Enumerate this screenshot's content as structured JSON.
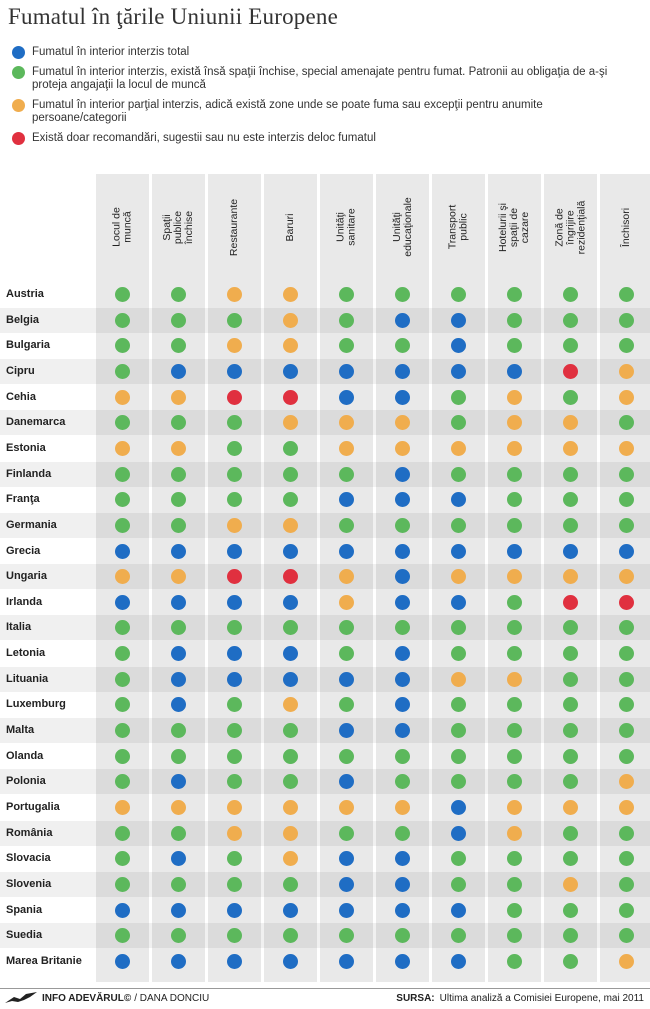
{
  "title": "Fumatul în ţările Uniunii Europene",
  "colors": {
    "blue": "#1f6dc4",
    "green": "#5cb85c",
    "orange": "#f0ad4e",
    "red": "#e0303f"
  },
  "legend": [
    {
      "color": "blue",
      "text": "Fumatul în interior interzis total"
    },
    {
      "color": "green",
      "text": "Fumatul în interior interzis, există însă spaţii închise, special amenajate pentru fumat. Patronii au obligaţia de a-şi proteja angajaţii la locul de muncă"
    },
    {
      "color": "orange",
      "text": "Fumatul în interior parţial interzis, adică există zone unde se poate fuma sau excepţii pentru anumite persoane/categorii"
    },
    {
      "color": "red",
      "text": "Există doar recomandări, sugestii sau nu este interzis deloc fumatul"
    }
  ],
  "chart_data": {
    "type": "table",
    "columns": [
      "Locul de muncă",
      "Spaţii publice închise",
      "Restaurante",
      "Baruri",
      "Unităţi sanitare",
      "Unităţi educaţionale",
      "Transport public",
      "Hotelurii şi spaţii de cazare",
      "Zonă de îngrijire rezidenţială",
      "Închisori"
    ],
    "rows": [
      {
        "country": "Austria",
        "values": [
          "green",
          "green",
          "orange",
          "orange",
          "green",
          "green",
          "green",
          "green",
          "green",
          "green"
        ]
      },
      {
        "country": "Belgia",
        "values": [
          "green",
          "green",
          "green",
          "orange",
          "green",
          "blue",
          "blue",
          "green",
          "green",
          "green"
        ]
      },
      {
        "country": "Bulgaria",
        "values": [
          "green",
          "green",
          "orange",
          "orange",
          "green",
          "green",
          "blue",
          "green",
          "green",
          "green"
        ]
      },
      {
        "country": "Cipru",
        "values": [
          "green",
          "blue",
          "blue",
          "blue",
          "blue",
          "blue",
          "blue",
          "blue",
          "red",
          "orange"
        ]
      },
      {
        "country": "Cehia",
        "values": [
          "orange",
          "orange",
          "red",
          "red",
          "blue",
          "blue",
          "green",
          "orange",
          "green",
          "orange"
        ]
      },
      {
        "country": "Danemarca",
        "values": [
          "green",
          "green",
          "green",
          "orange",
          "orange",
          "orange",
          "green",
          "orange",
          "orange",
          "green"
        ]
      },
      {
        "country": "Estonia",
        "values": [
          "orange",
          "orange",
          "green",
          "green",
          "orange",
          "orange",
          "orange",
          "orange",
          "orange",
          "orange"
        ]
      },
      {
        "country": "Finlanda",
        "values": [
          "green",
          "green",
          "green",
          "green",
          "green",
          "blue",
          "green",
          "green",
          "green",
          "green"
        ]
      },
      {
        "country": "Franţa",
        "values": [
          "green",
          "green",
          "green",
          "green",
          "blue",
          "blue",
          "blue",
          "green",
          "green",
          "green"
        ]
      },
      {
        "country": "Germania",
        "values": [
          "green",
          "green",
          "orange",
          "orange",
          "green",
          "green",
          "green",
          "green",
          "green",
          "green"
        ]
      },
      {
        "country": "Grecia",
        "values": [
          "blue",
          "blue",
          "blue",
          "blue",
          "blue",
          "blue",
          "blue",
          "blue",
          "blue",
          "blue"
        ]
      },
      {
        "country": "Ungaria",
        "values": [
          "orange",
          "orange",
          "red",
          "red",
          "orange",
          "blue",
          "orange",
          "orange",
          "orange",
          "orange"
        ]
      },
      {
        "country": "Irlanda",
        "values": [
          "blue",
          "blue",
          "blue",
          "blue",
          "orange",
          "blue",
          "blue",
          "green",
          "red",
          "red"
        ]
      },
      {
        "country": "Italia",
        "values": [
          "green",
          "green",
          "green",
          "green",
          "green",
          "green",
          "green",
          "green",
          "green",
          "green"
        ]
      },
      {
        "country": "Letonia",
        "values": [
          "green",
          "blue",
          "blue",
          "blue",
          "green",
          "blue",
          "green",
          "green",
          "green",
          "green"
        ]
      },
      {
        "country": "Lituania",
        "values": [
          "green",
          "blue",
          "blue",
          "blue",
          "blue",
          "blue",
          "orange",
          "orange",
          "green",
          "green"
        ]
      },
      {
        "country": "Luxemburg",
        "values": [
          "green",
          "blue",
          "green",
          "orange",
          "green",
          "blue",
          "green",
          "green",
          "green",
          "green"
        ]
      },
      {
        "country": "Malta",
        "values": [
          "green",
          "green",
          "green",
          "green",
          "blue",
          "blue",
          "green",
          "green",
          "green",
          "green"
        ]
      },
      {
        "country": "Olanda",
        "values": [
          "green",
          "green",
          "green",
          "green",
          "green",
          "green",
          "green",
          "green",
          "green",
          "green"
        ]
      },
      {
        "country": "Polonia",
        "values": [
          "green",
          "blue",
          "green",
          "green",
          "blue",
          "green",
          "green",
          "green",
          "green",
          "orange"
        ]
      },
      {
        "country": "Portugalia",
        "values": [
          "orange",
          "orange",
          "orange",
          "orange",
          "orange",
          "orange",
          "blue",
          "orange",
          "orange",
          "orange"
        ]
      },
      {
        "country": "România",
        "values": [
          "green",
          "green",
          "orange",
          "orange",
          "green",
          "green",
          "blue",
          "orange",
          "green",
          "green"
        ]
      },
      {
        "country": "Slovacia",
        "values": [
          "green",
          "blue",
          "green",
          "orange",
          "blue",
          "blue",
          "green",
          "green",
          "green",
          "green"
        ]
      },
      {
        "country": "Slovenia",
        "values": [
          "green",
          "green",
          "green",
          "green",
          "blue",
          "blue",
          "green",
          "green",
          "orange",
          "green"
        ]
      },
      {
        "country": "Spania",
        "values": [
          "blue",
          "blue",
          "blue",
          "blue",
          "blue",
          "blue",
          "blue",
          "green",
          "green",
          "green"
        ]
      },
      {
        "country": "Suedia",
        "values": [
          "green",
          "green",
          "green",
          "green",
          "green",
          "green",
          "green",
          "green",
          "green",
          "green"
        ]
      },
      {
        "country": "Marea Britanie",
        "values": [
          "blue",
          "blue",
          "blue",
          "blue",
          "blue",
          "blue",
          "blue",
          "green",
          "green",
          "orange"
        ]
      }
    ]
  },
  "footer": {
    "brand": "INFO ADEVĂRUL©",
    "author": "/ DANA DONCIU",
    "source_label": "SURSA:",
    "source_text": "Ultima analiză a Comisiei Europene, mai 2011"
  }
}
